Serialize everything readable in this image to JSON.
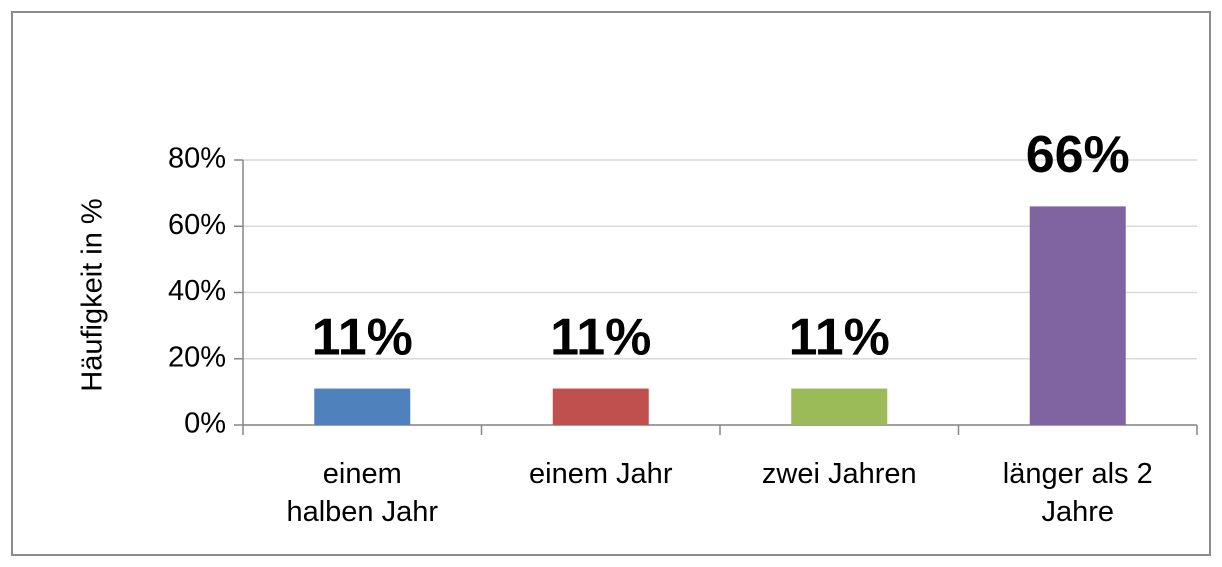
{
  "chart_data": {
    "type": "bar",
    "y_label": "Häufigkeit in %",
    "categories": [
      "einem\nhalben Jahr",
      "einem Jahr",
      "zwei Jahren",
      "länger als 2\nJahre"
    ],
    "values": [
      11,
      11,
      11,
      66
    ],
    "value_labels": [
      "11%",
      "11%",
      "11%",
      "66%"
    ],
    "colors": [
      "#4f81bd",
      "#c0504d",
      "#9bbb59",
      "#8064a2"
    ],
    "ylim": [
      0,
      80
    ],
    "yticks": [
      {
        "value": 0,
        "label": "0%"
      },
      {
        "value": 20,
        "label": "20%"
      },
      {
        "value": 40,
        "label": "40%"
      },
      {
        "value": 60,
        "label": "60%"
      },
      {
        "value": 80,
        "label": "80%"
      }
    ],
    "grid": true
  }
}
